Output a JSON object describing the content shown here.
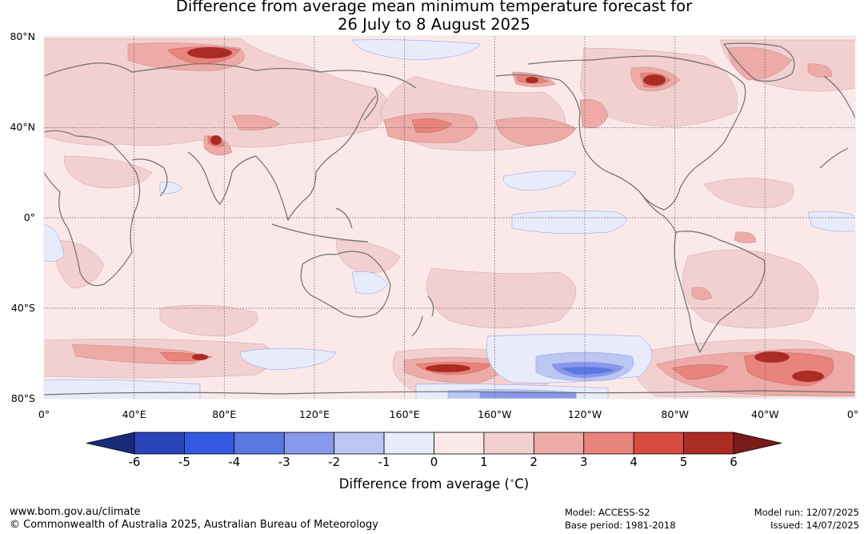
{
  "title": {
    "line1": "Difference from average mean minimum temperature forecast for",
    "line2": "26 July to 8 August 2025"
  },
  "lat_labels": [
    "80°N",
    "40°N",
    "0°",
    "40°S",
    "80°S"
  ],
  "lon_labels": [
    "0°",
    "40°E",
    "80°E",
    "120°E",
    "160°E",
    "160°W",
    "120°W",
    "80°W",
    "40°W",
    "0°"
  ],
  "colorbar": {
    "ticks": [
      "-6",
      "-5",
      "-4",
      "-3",
      "-2",
      "-1",
      "0",
      "1",
      "2",
      "3",
      "4",
      "5",
      "6"
    ],
    "title": "Difference from average (°C)",
    "colors": [
      "#1a2a7a",
      "#2a45b8",
      "#3358e0",
      "#5a78e2",
      "#8898ea",
      "#bcc6f2",
      "#e8ecfa",
      "#fbe9e9",
      "#f3d0d0",
      "#edaaa6",
      "#e8847c",
      "#d84a40",
      "#ab2c25",
      "#7a1c1a"
    ]
  },
  "footer": {
    "website": "www.bom.gov.au/climate",
    "copyright": "© Commonwealth of Australia 2025, Australian Bureau of Meteorology",
    "model": "Model: ACCESS-S2",
    "base_period": "Base period: 1981-2018",
    "model_run": "Model run: 12/07/2025",
    "issued": "Issued: 14/07/2025"
  }
}
